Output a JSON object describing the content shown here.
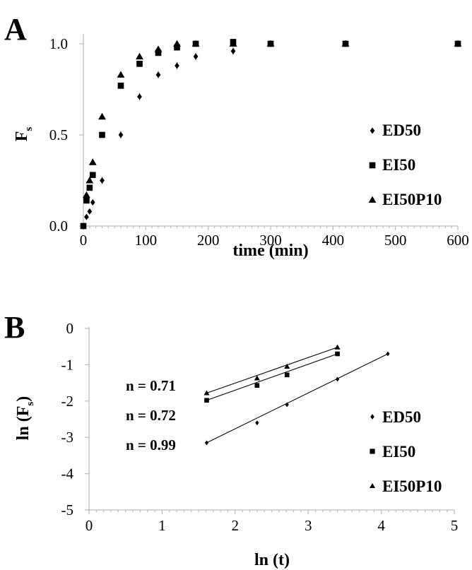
{
  "chart_data": [
    {
      "panel": "A",
      "type": "scatter",
      "xlabel": "time (min)",
      "ylabel": "F",
      "ylabel_sub": "s",
      "xlim": [
        0,
        600
      ],
      "ylim": [
        0,
        1.0
      ],
      "xticks": [
        0,
        100,
        200,
        300,
        400,
        500,
        600
      ],
      "yticks": [
        "0.0",
        "0.5",
        "1.0"
      ],
      "ytick_values": [
        0,
        0.5,
        1.0
      ],
      "grid": false,
      "legend_position": "right",
      "series": [
        {
          "name": "ED50",
          "marker": "diamond",
          "x": [
            0,
            5,
            10,
            15,
            30,
            60,
            90,
            120,
            150,
            180,
            240,
            300,
            420,
            600
          ],
          "y": [
            0.0,
            0.05,
            0.08,
            0.13,
            0.25,
            0.5,
            0.71,
            0.83,
            0.88,
            0.93,
            0.96,
            1.0,
            1.0,
            1.0
          ],
          "err": [
            0,
            0.01,
            0.01,
            0.015,
            0.02,
            0.02,
            0.02,
            0.02,
            0.02,
            0.02,
            0.02,
            0.01,
            0.01,
            0.01
          ]
        },
        {
          "name": "EI50",
          "marker": "square",
          "x": [
            0,
            5,
            10,
            15,
            30,
            60,
            90,
            120,
            150,
            180,
            240,
            300,
            420,
            600
          ],
          "y": [
            0.0,
            0.14,
            0.21,
            0.28,
            0.5,
            0.77,
            0.89,
            0.95,
            0.98,
            1.0,
            1.01,
            1.0,
            1.0,
            1.0
          ],
          "err": [
            0,
            0.01,
            0.01,
            0.015,
            0.015,
            0.015,
            0.015,
            0.015,
            0.015,
            0.015,
            0.015,
            0.01,
            0.01,
            0.01
          ]
        },
        {
          "name": "EI50P10",
          "marker": "triangle",
          "x": [
            5,
            10,
            15,
            30,
            60,
            90,
            120,
            150,
            180,
            240,
            300,
            420,
            600
          ],
          "y": [
            0.17,
            0.25,
            0.35,
            0.6,
            0.83,
            0.93,
            0.97,
            1.0,
            1.0,
            1.0,
            1.0,
            1.0,
            1.0
          ],
          "err": [
            0.01,
            0.01,
            0.01,
            0.015,
            0.015,
            0.015,
            0.015,
            0.01,
            0.01,
            0.01,
            0.01,
            0.01,
            0.01
          ]
        }
      ]
    },
    {
      "panel": "B",
      "type": "scatter",
      "xlabel": "ln (t)",
      "ylabel": "ln (F",
      "ylabel_sub": "s",
      "ylabel_close": ")",
      "xlim": [
        0,
        5
      ],
      "ylim": [
        -5,
        0
      ],
      "xticks": [
        0,
        1,
        2,
        3,
        4,
        5
      ],
      "yticks": [
        "0",
        "-1",
        "-2",
        "-3",
        "-4",
        "-5"
      ],
      "ytick_values": [
        0,
        -1,
        -2,
        -3,
        -4,
        -5
      ],
      "grid": false,
      "legend_position": "right",
      "series": [
        {
          "name": "ED50",
          "marker": "diamond",
          "x": [
            1.61,
            2.3,
            2.71,
            3.4,
            4.09
          ],
          "y": [
            -3.15,
            -2.6,
            -2.1,
            -1.4,
            -0.7
          ],
          "fit": [
            [
              1.61,
              -3.15
            ],
            [
              4.09,
              -0.7
            ]
          ],
          "annotation": "n = 0.99"
        },
        {
          "name": "EI50",
          "marker": "square",
          "x": [
            1.61,
            2.3,
            2.71,
            3.4
          ],
          "y": [
            -1.98,
            -1.57,
            -1.28,
            -0.7
          ],
          "fit": [
            [
              1.61,
              -1.98
            ],
            [
              3.4,
              -0.7
            ]
          ],
          "annotation": "n = 0.72"
        },
        {
          "name": "EI50P10",
          "marker": "triangle",
          "x": [
            1.61,
            2.3,
            2.71,
            3.4
          ],
          "y": [
            -1.78,
            -1.37,
            -1.05,
            -0.52
          ],
          "fit": [
            [
              1.61,
              -1.78
            ],
            [
              3.4,
              -0.52
            ]
          ],
          "annotation": "n = 0.71"
        }
      ]
    }
  ]
}
